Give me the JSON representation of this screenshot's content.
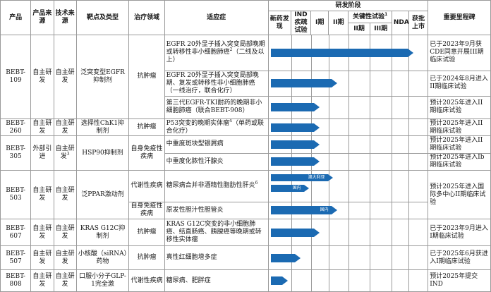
{
  "headers": {
    "product": "产品",
    "product_source": "产品来源",
    "tech_source": "技术来源",
    "target": "靶点及类型",
    "area": "治疗领域",
    "indication": "适应症",
    "stage": "研发阶段",
    "milestone": "重要里程碑",
    "stage_cols": {
      "discovery": "新药发现",
      "ind": "IND疾疏试验",
      "phase1": "I期",
      "phase2": "II期",
      "pivotal": "关键性试验",
      "pivotal_sup": "1",
      "pivotal_2": "II期",
      "pivotal_3": "III期",
      "nda": "NDA",
      "approved": "获批上市"
    }
  },
  "rows": [
    {
      "product": "BEBT-109",
      "source": "自主研发",
      "tech": "自主研发",
      "target": "泛突变型EGFR抑制剂",
      "area": "抗肿瘤",
      "indications": [
        {
          "text": "EGFR 20外显子插入突变局部晚期或转移性非小细胞肺癌",
          "sup": "2",
          "text2": "（二线及以上）",
          "progress": 0.86,
          "bar_label": "",
          "milestone": "已于2023年9月获CDE同意开展III期临床试验"
        },
        {
          "text": "EGFR 20外显子插入突变局部晚期、复发或转移性非小细胞肺癌（一线治疗，联合化疗）",
          "sup": "",
          "text2": "",
          "progress": 0.38,
          "bar_label": "",
          "milestone": "已于2024年8月进入II期临床试验"
        },
        {
          "text": "第三代EGFR-TKI耐药的晚期非小细胞肺癌（联合BEBT-908）",
          "sup": "",
          "text2": "",
          "progress": 0.27,
          "bar_label": "",
          "milestone": "预计2025年进入II期临床试验"
        }
      ]
    },
    {
      "product": "BEBT-260",
      "source": "自主研发",
      "tech": "自主研发",
      "target": "选择性ChK1抑制剂",
      "area": "抗肿瘤",
      "indications": [
        {
          "text": "P53突变的晚期实体瘤",
          "sup": "4",
          "text2": "（单药或联合化疗）",
          "progress": 0.27,
          "bar_label": "",
          "milestone": "预计2025年进入II期临床试验"
        }
      ]
    },
    {
      "product": "BEBT-305",
      "source": "外部引进",
      "tech": "自主研发",
      "tech_sup": "3",
      "target": "HSP90抑制剂",
      "area": "自身免疫性疾病",
      "indications": [
        {
          "text": "中重度斑块型银屑病",
          "sup": "",
          "text2": "",
          "progress": 0.27,
          "bar_label": "",
          "milestone": "预计2025年进入II期临床试验"
        },
        {
          "text": "中重度化脓性汗腺炎",
          "sup": "",
          "text2": "",
          "progress": 0.27,
          "bar_label": "",
          "milestone": "预计2025年进入Ib期临床试验"
        }
      ]
    },
    {
      "product": "BEBT-503",
      "source": "自主研发",
      "tech": "自主研发",
      "target": "泛PPAR激动剂",
      "area": "代谢性疾病",
      "indications": [
        {
          "text": "糖尿病合并非酒精性脂肪性肝炎",
          "sup": "6",
          "text2": "",
          "progress": 0.36,
          "bar_label": "澳大利亚",
          "progress_b": 0.38,
          "bar_label_b": "国内",
          "milestone": "预计2025年进入国际多中心II期临床试验"
        }
      ]
    },
    {
      "product": "",
      "source": "",
      "tech": "",
      "target": "",
      "area": "自身免疫性疾病",
      "indications": [
        {
          "text": "原发性胆汁性胆管炎",
          "sup": "",
          "text2": "",
          "progress": 0.38,
          "bar_label": "国内",
          "milestone": ""
        }
      ]
    },
    {
      "product": "BEBT-607",
      "source": "自主研发",
      "tech": "自主研发",
      "target": "KRAS G12C抑制剂",
      "area": "抗肿瘤",
      "indications": [
        {
          "text": "KRAS G12C突变的非小细胞肺癌、结直肠癌、胰腺癌等晚期或转移性实体瘤",
          "sup": "",
          "text2": "",
          "progress": 0.27,
          "bar_label": "",
          "milestone": "已于2023年9月进入I期临床试验"
        }
      ]
    },
    {
      "product": "BEBT-507",
      "source": "自主研发",
      "tech": "自主研发",
      "target": "小核酸（siRNA）药物",
      "area": "抗肿瘤",
      "indications": [
        {
          "text": "真性红细胞增多症",
          "sup": "",
          "text2": "",
          "progress": 0.15,
          "bar_label": "",
          "milestone": "已于2025年6月获进入I期临床试验"
        }
      ]
    },
    {
      "product": "BEBT-808",
      "source": "自主研发",
      "tech": "自主研发",
      "target": "口服小分子GLP-1完全激",
      "area": "代谢性疾病",
      "indications": [
        {
          "text": "糖尿病、肥胖症",
          "sup": "",
          "text2": "",
          "progress": 0.07,
          "bar_label": "",
          "milestone": "预计2025年提交IND"
        }
      ]
    }
  ],
  "colors": {
    "bar": "#1b6ab2",
    "border": "#9a9a9a"
  }
}
